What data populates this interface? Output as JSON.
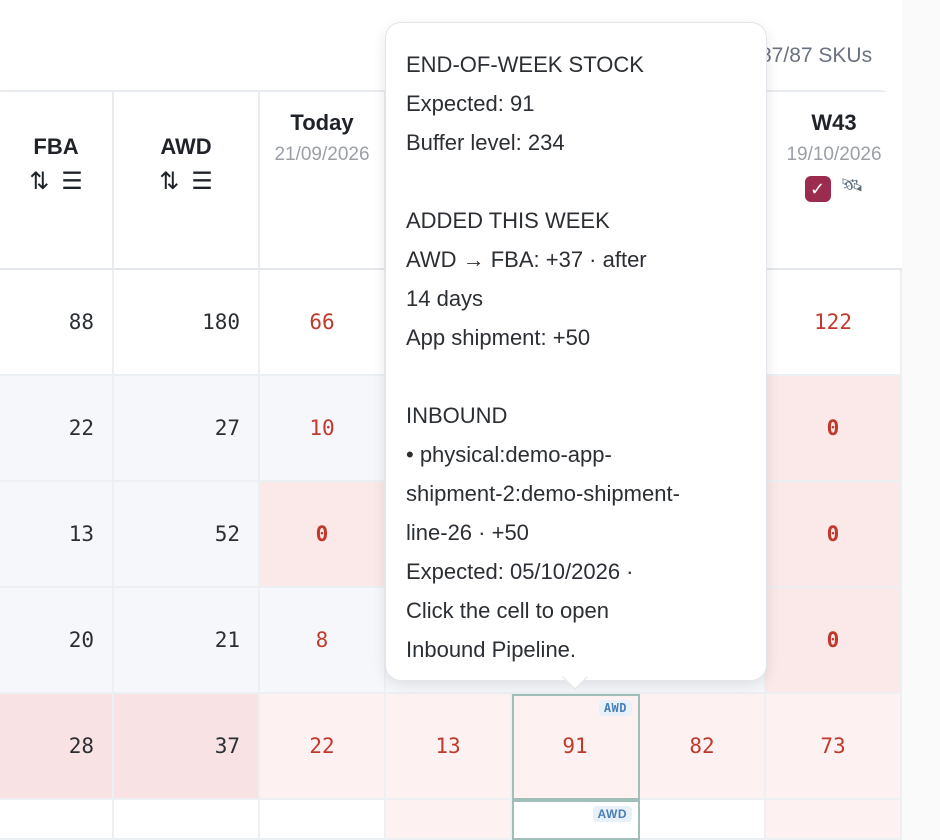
{
  "sku_count": "87/87 SKUs",
  "columns": {
    "fba": {
      "title": "FBA"
    },
    "awd": {
      "title": "AWD"
    },
    "today": {
      "title": "Today",
      "date": "21/09/2026"
    },
    "w43": {
      "title": "W43",
      "date": "19/10/2026"
    }
  },
  "icons": {
    "sort": "sort-arrows-icon",
    "filter": "filter-icon",
    "check": "check-icon",
    "satellite": "satellite-icon"
  },
  "rows": [
    {
      "fba": "88",
      "awd": "180",
      "today": "66",
      "w43": "122"
    },
    {
      "fba": "22",
      "awd": "27",
      "today": "10",
      "w43": "0"
    },
    {
      "fba": "13",
      "awd": "52",
      "today": "0",
      "w43": "0"
    },
    {
      "fba": "20",
      "awd": "21",
      "today": "8",
      "w43": "0"
    },
    {
      "fba": "28",
      "awd": "37",
      "today": "22",
      "w41": "13",
      "w42": "91",
      "w42b": "82",
      "w43": "73"
    }
  ],
  "badges": {
    "awd": "AWD"
  },
  "tooltip": {
    "l1": "END-OF-WEEK STOCK",
    "l2": "Expected: 91",
    "l3": "Buffer level: 234",
    "l4": "ADDED THIS WEEK",
    "l5": "AWD → FBA: +37 · after",
    "l6": "14 days",
    "l7": "App shipment: +50",
    "l8": "INBOUND",
    "l9": "• physical:demo-app-",
    "l10": "shipment-2:demo-shipment-",
    "l11": "line-26 · +50",
    "l12": "Expected: 05/10/2026 ·",
    "l13": "Click the cell to open",
    "l14": "Inbound Pipeline."
  },
  "colors": {
    "accent_red": "#c0392b",
    "check_bg": "#9b2c50",
    "selected_outline": "#9fbfb8"
  }
}
